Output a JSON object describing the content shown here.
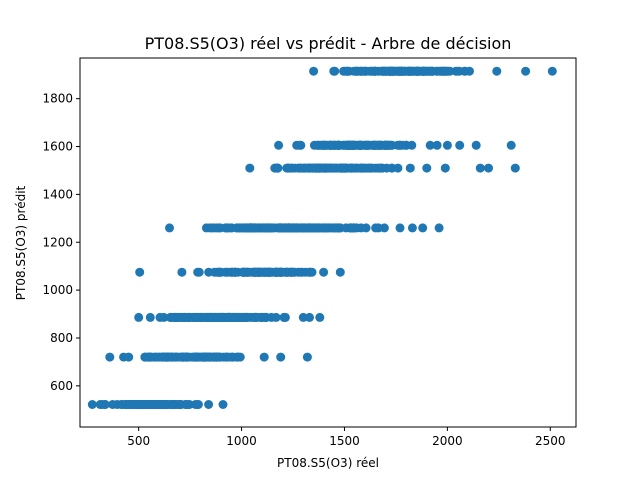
{
  "chart_data": {
    "type": "scatter",
    "title": "PT08.S5(O3) réel vs prédit - Arbre de décision",
    "xlabel": "PT08.S5(O3) réel",
    "ylabel": "PT08.S5(O3) prédit",
    "xlim": [
      215,
      2625
    ],
    "ylim": [
      428,
      1970
    ],
    "xticks": [
      500,
      1000,
      1500,
      2000,
      2500
    ],
    "yticks": [
      600,
      800,
      1000,
      1200,
      1400,
      1600,
      1800
    ],
    "grid": false,
    "legend": false,
    "marker_color": "#1f77b4",
    "series": [
      {
        "levels": [
          {
            "y": 522,
            "x_min": 275,
            "x_max": 840,
            "outliers": [
              910
            ]
          },
          {
            "y": 720,
            "x_min": 360,
            "x_max": 1110,
            "outliers": [
              1190,
              1320
            ]
          },
          {
            "y": 886,
            "x_min": 500,
            "x_max": 1300,
            "outliers": [
              1330,
              1380
            ]
          },
          {
            "y": 1075,
            "x_min": 710,
            "x_max": 1480,
            "outliers": [
              505
            ]
          },
          {
            "y": 1260,
            "x_min": 650,
            "x_max": 1770,
            "outliers": [
              1830,
              1880,
              1960
            ]
          },
          {
            "y": 1510,
            "x_min": 1040,
            "x_max": 1820,
            "outliers": [
              1900,
              1990,
              2160,
              2200,
              2330
            ]
          },
          {
            "y": 1605,
            "x_min": 1180,
            "x_max": 1950,
            "outliers": [
              2000,
              2060,
              2140,
              2310
            ]
          },
          {
            "y": 1915,
            "x_min": 1350,
            "x_max": 2240,
            "outliers": [
              2380,
              2510
            ]
          }
        ]
      }
    ]
  }
}
